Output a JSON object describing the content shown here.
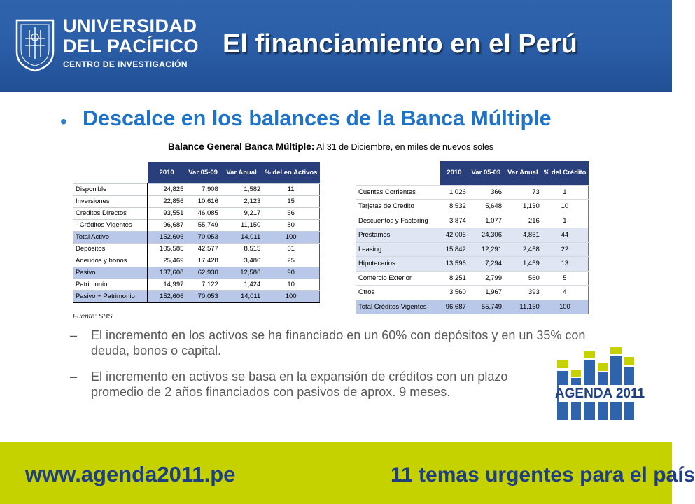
{
  "header": {
    "logo": {
      "line1": "UNIVERSIDAD",
      "line2": "DEL PACÍFICO",
      "line3": "CENTRO DE INVESTIGACIÓN",
      "seal_text": "UNIVERSIDAD DEL PACIFICO · LIMA · PERU"
    },
    "title": "El financiamiento en el Perú"
  },
  "main": {
    "bullet": "Descalce en los balances de la Banca Múltiple",
    "subtitle_bold": "Balance General Banca Múltiple:",
    "subtitle_rest": " Al 31 de Diciembre, en miles de nuevos soles"
  },
  "table1": {
    "headers": [
      "2010",
      "Var 05-09",
      "Var Anual",
      "% del en Activos"
    ],
    "rows": [
      {
        "label": "Disponible",
        "v2010": "24,825",
        "var0509": "7,908",
        "var_anual": "1,582",
        "pct": "11"
      },
      {
        "label": "Inversiones",
        "v2010": "22,856",
        "var0509": "10,616",
        "var_anual": "2,123",
        "pct": "15"
      },
      {
        "label": "Créditos Directos",
        "v2010": "93,551",
        "var0509": "46,085",
        "var_anual": "9,217",
        "pct": "66"
      },
      {
        "label": "- Créditos Vigentes",
        "v2010": "96,687",
        "var0509": "55,749",
        "var_anual": "11,150",
        "pct": "80"
      },
      {
        "label": "Total Activo",
        "v2010": "152,606",
        "var0509": "70,053",
        "var_anual": "14,011",
        "pct": "100"
      },
      {
        "label": "Depósitos",
        "v2010": "105,585",
        "var0509": "42,577",
        "var_anual": "8,515",
        "pct": "61"
      },
      {
        "label": "Adeudos y bonos",
        "v2010": "25,469",
        "var0509": "17,428",
        "var_anual": "3,486",
        "pct": "25"
      },
      {
        "label": "Pasivo",
        "v2010": "137,608",
        "var0509": "62,930",
        "var_anual": "12,586",
        "pct": "90"
      },
      {
        "label": "Patrimonio",
        "v2010": "14,997",
        "var0509": "7,122",
        "var_anual": "1,424",
        "pct": "10"
      },
      {
        "label": "Pasivo + Patrimonio",
        "v2010": "152,606",
        "var0509": "70,053",
        "var_anual": "14,011",
        "pct": "100"
      }
    ]
  },
  "table2": {
    "headers": [
      "2010",
      "Var 05-09",
      "Var Anual",
      "% del Crédito"
    ],
    "rows": [
      {
        "label": "Cuentas Corrientes",
        "v2010": "1,026",
        "var0509": "366",
        "var_anual": "73",
        "pct": "1"
      },
      {
        "label": "Tarjetas de Crédito",
        "v2010": "8,532",
        "var0509": "5,648",
        "var_anual": "1,130",
        "pct": "10"
      },
      {
        "label": "Descuentos y Factoring",
        "v2010": "3,874",
        "var0509": "1,077",
        "var_anual": "216",
        "pct": "1"
      },
      {
        "label": "Préstamos",
        "v2010": "42,006",
        "var0509": "24,306",
        "var_anual": "4,861",
        "pct": "44"
      },
      {
        "label": "Leasing",
        "v2010": "15,842",
        "var0509": "12,291",
        "var_anual": "2,458",
        "pct": "22"
      },
      {
        "label": "Hipotecarios",
        "v2010": "13,596",
        "var0509": "7,294",
        "var_anual": "1,459",
        "pct": "13"
      },
      {
        "label": "Comercio Exterior",
        "v2010": "8,251",
        "var0509": "2,799",
        "var_anual": "560",
        "pct": "5"
      },
      {
        "label": "Otros",
        "v2010": "3,560",
        "var0509": "1,967",
        "var_anual": "393",
        "pct": "4"
      },
      {
        "label": "Total Créditos Vigentes",
        "v2010": "96,687",
        "var0509": "55,749",
        "var_anual": "11,150",
        "pct": "100"
      }
    ]
  },
  "source": "Fuente: SBS",
  "sub_bullets": [
    {
      "dash": "–",
      "text": "El incremento en los activos se ha financiado en un 60% con depósitos y en un 35% con deuda, bonos o capital."
    },
    {
      "dash": "–",
      "text": "El incremento en activos se basa en la expansión de créditos con un plazo promedio de 2 años financiados con pasivos de aprox. 9 meses."
    }
  ],
  "agenda_logo": {
    "text": "AGENDA 2011"
  },
  "footer": {
    "url": "www.agenda2011.pe",
    "tagline": "11 temas urgentes para el país"
  },
  "colors": {
    "header_blue": "#2a5da6",
    "title_blue": "#1f73c6",
    "table_header": "#283f7c",
    "highlight": "#b9c7e8",
    "footer_lime": "#c6d200",
    "footer_text": "#1e3f84"
  }
}
